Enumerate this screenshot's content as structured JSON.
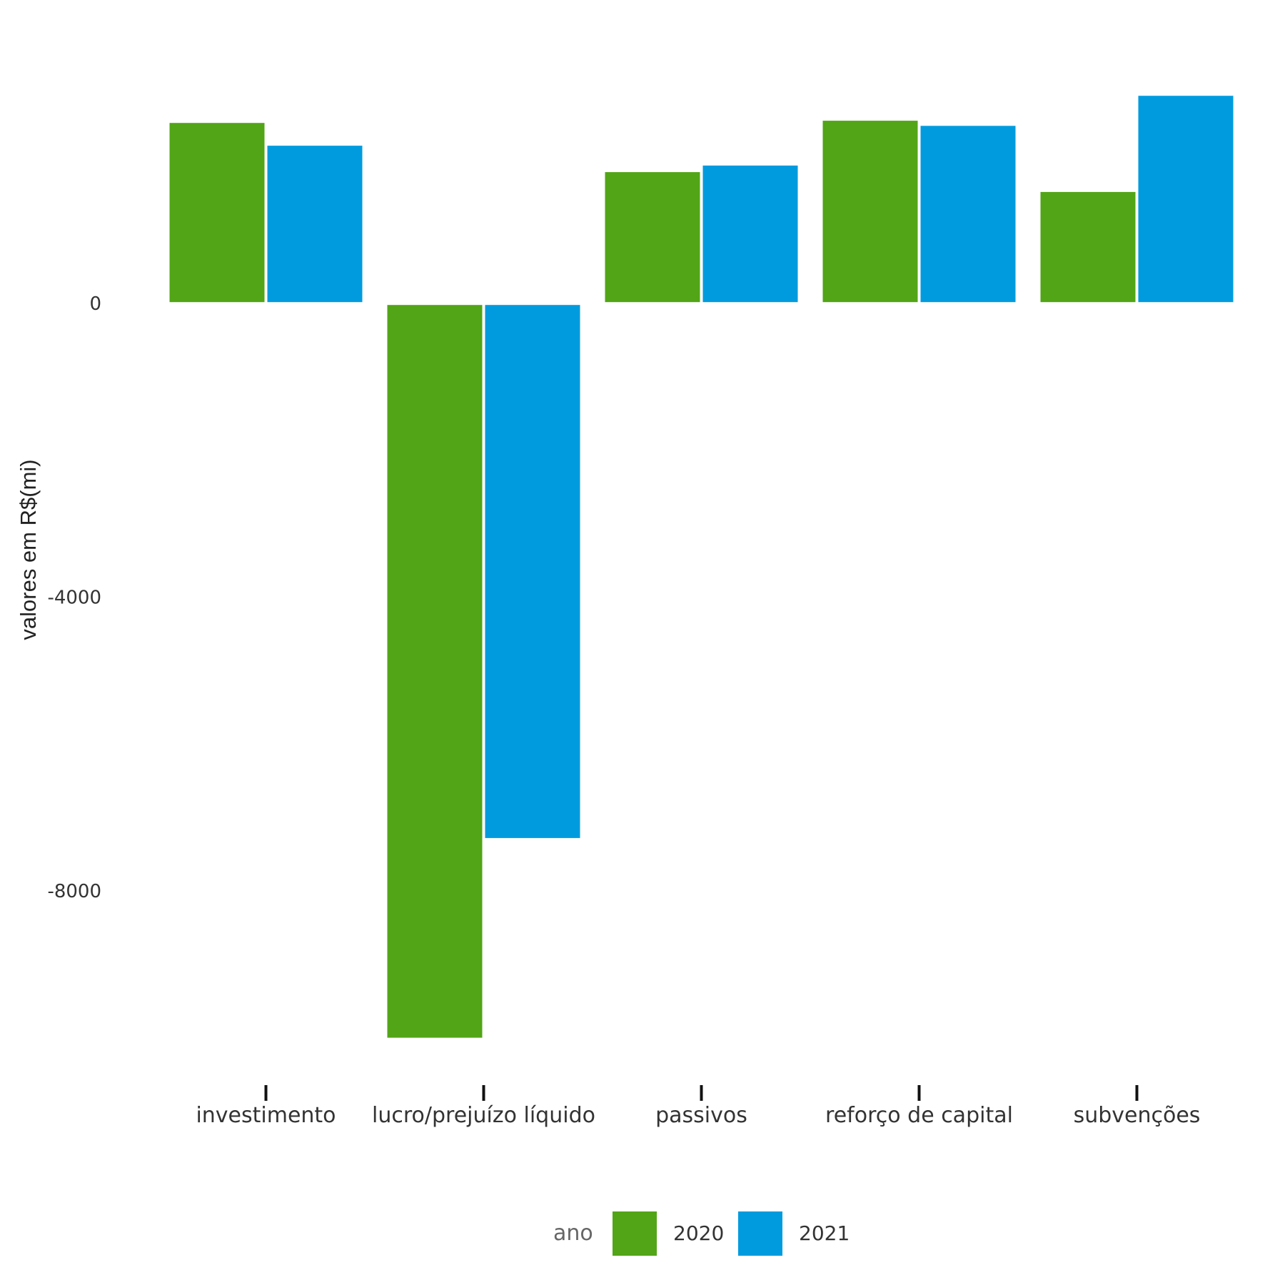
{
  "chart_data": {
    "type": "bar",
    "ylabel": "valores em R$(mi)",
    "categories": [
      "investimento",
      "lucro/prejuízo líquido",
      "passivos",
      "reforço de capital",
      "subvenções"
    ],
    "series": [
      {
        "name": "2020",
        "color": "#52a516",
        "values": [
          2460,
          -10000,
          1790,
          2490,
          1520
        ]
      },
      {
        "name": "2021",
        "color": "#009bde",
        "values": [
          2150,
          -7280,
          1880,
          2420,
          2830
        ]
      }
    ],
    "ylim": [
      -10500,
      3600
    ],
    "yticks": [
      0,
      -4000,
      -8000
    ],
    "ytick_labels": [
      "0",
      "-4000",
      "-8000"
    ],
    "grid": false,
    "legend": {
      "title": "ano",
      "position": "bottom",
      "entries": [
        "2020",
        "2021"
      ]
    }
  }
}
